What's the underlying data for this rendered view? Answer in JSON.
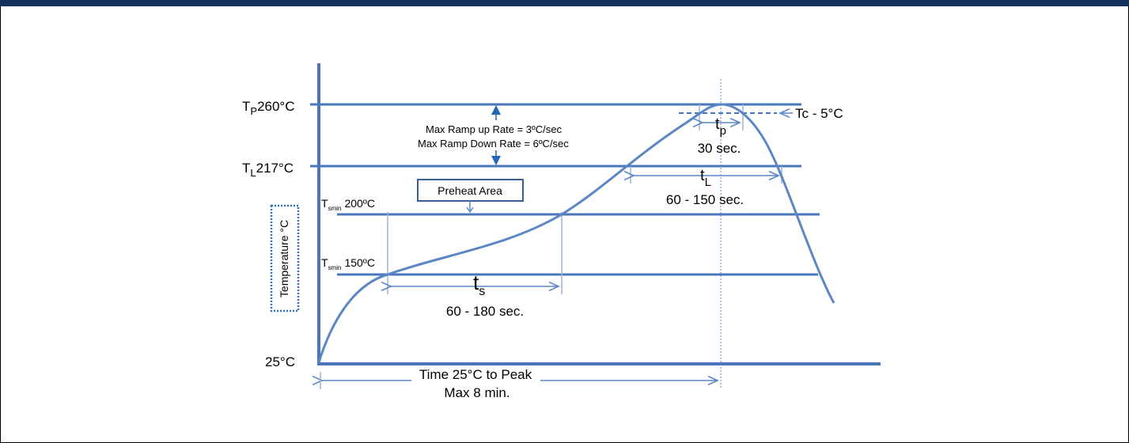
{
  "diagram": {
    "temperature_axis_label": "Temperature °C",
    "levels": {
      "tp": {
        "symbol": "T",
        "sub": "P",
        "value": "260°C"
      },
      "tl": {
        "symbol": "T",
        "sub": "L",
        "value": "217°C"
      },
      "tsmax": {
        "symbol": "T",
        "sub": "smin",
        "value": "200ºC"
      },
      "tsmin": {
        "symbol": "T",
        "sub": "smin",
        "value": "150ºC"
      },
      "base": {
        "value": "25°C"
      }
    },
    "ramp_rates": {
      "up": "Max Ramp up Rate = 3ºC/sec",
      "down": "Max Ramp Down Rate = 6ºC/sec"
    },
    "preheat_label": "Preheat Area",
    "ts": {
      "symbol": "t",
      "sub": "s",
      "duration": "60 - 180 sec."
    },
    "tl_time": {
      "symbol": "t",
      "sub": "L",
      "duration": "60 - 150 sec."
    },
    "tp_time": {
      "symbol": "t",
      "sub": "p",
      "duration": "30 sec."
    },
    "tc_label": "Tc - 5°C",
    "time_to_peak": {
      "line1": "Time 25°C to Peak",
      "line2": "Max 8 min."
    }
  },
  "colors": {
    "curve": "#5b87c5",
    "line": "#4a77bb",
    "arrow": "#2268b4",
    "dotted_box": "#2b72c0",
    "topbar": "#16315c"
  }
}
